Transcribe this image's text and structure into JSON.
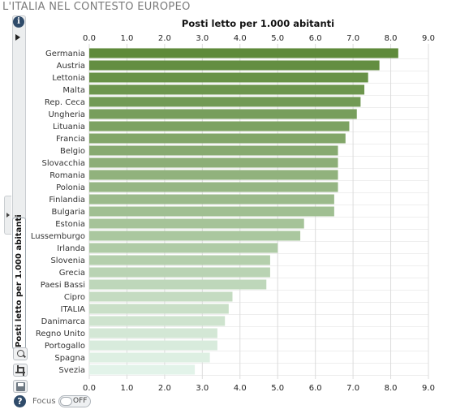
{
  "page": {
    "title": "L'ITALIA NEL CONTESTO EUROPEO"
  },
  "sidebar": {
    "info_icon": "info-icon",
    "info_glyph": "i",
    "tab_label": "Posti letto per 1.000 abitanti",
    "tools": [
      "zoom-icon",
      "crop-icon",
      "save-icon"
    ],
    "help_icon": "help-icon",
    "help_glyph": "?"
  },
  "focus": {
    "label": "Focus",
    "state": "OFF"
  },
  "colors": {
    "bar_dark": "#5e8a3a",
    "bar_light": "#e2f3e9"
  },
  "chart_data": {
    "type": "bar",
    "orientation": "horizontal",
    "title": "Posti letto per 1.000 abitanti",
    "categories": [
      "Germania",
      "Austria",
      "Lettonia",
      "Malta",
      "Rep. Ceca",
      "Ungheria",
      "Lituania",
      "Francia",
      "Belgio",
      "Slovacchia",
      "Romania",
      "Polonia",
      "Finlandia",
      "Bulgaria",
      "Estonia",
      "Lussemburgo",
      "Irlanda",
      "Slovenia",
      "Grecia",
      "Paesi Bassi",
      "Cipro",
      "ITALIA",
      "Danimarca",
      "Regno Unito",
      "Portogallo",
      "Spagna",
      "Svezia"
    ],
    "values": [
      8.2,
      7.7,
      7.4,
      7.3,
      7.2,
      7.1,
      6.9,
      6.8,
      6.6,
      6.6,
      6.6,
      6.6,
      6.5,
      6.5,
      5.7,
      5.6,
      5.0,
      4.8,
      4.8,
      4.7,
      3.8,
      3.7,
      3.6,
      3.4,
      3.4,
      3.2,
      2.8
    ],
    "xlim": [
      0,
      9
    ],
    "ticks": [
      "0.0",
      "1.0",
      "2.0",
      "3.0",
      "4.0",
      "5.0",
      "6.0",
      "7.0",
      "8.0",
      "9.0"
    ],
    "grid": true
  }
}
